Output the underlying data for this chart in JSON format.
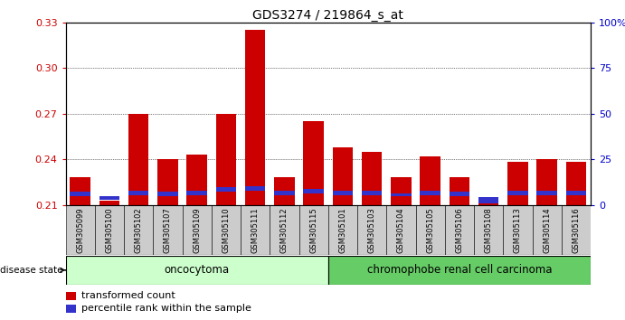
{
  "title": "GDS3274 / 219864_s_at",
  "samples": [
    "GSM305099",
    "GSM305100",
    "GSM305102",
    "GSM305107",
    "GSM305109",
    "GSM305110",
    "GSM305111",
    "GSM305112",
    "GSM305115",
    "GSM305101",
    "GSM305103",
    "GSM305104",
    "GSM305105",
    "GSM305106",
    "GSM305108",
    "GSM305113",
    "GSM305114",
    "GSM305116"
  ],
  "red_values": [
    0.228,
    0.213,
    0.27,
    0.24,
    0.243,
    0.27,
    0.325,
    0.228,
    0.265,
    0.248,
    0.245,
    0.228,
    0.242,
    0.228,
    0.213,
    0.238,
    0.24,
    0.238
  ],
  "blue_values": [
    0.003,
    0.002,
    0.003,
    0.003,
    0.003,
    0.003,
    0.003,
    0.003,
    0.003,
    0.003,
    0.003,
    0.002,
    0.003,
    0.003,
    0.004,
    0.003,
    0.003,
    0.003
  ],
  "blue_bottoms": [
    0.2155,
    0.2135,
    0.2165,
    0.2155,
    0.216,
    0.2185,
    0.219,
    0.216,
    0.2175,
    0.2165,
    0.216,
    0.2155,
    0.216,
    0.2155,
    0.211,
    0.216,
    0.216,
    0.216
  ],
  "ymin": 0.21,
  "ymax": 0.33,
  "yticks": [
    0.21,
    0.24,
    0.27,
    0.3,
    0.33
  ],
  "ytick_labels": [
    "0.21",
    "0.24",
    "0.27",
    "0.30",
    "0.33"
  ],
  "right_yticks": [
    0,
    25,
    50,
    75,
    100
  ],
  "right_ytick_labels": [
    "0",
    "25",
    "50",
    "75",
    "100%"
  ],
  "group1_label": "oncocytoma",
  "group2_label": "chromophobe renal cell carcinoma",
  "group1_count": 9,
  "group2_count": 9,
  "disease_state_label": "disease state",
  "legend_red_label": "transformed count",
  "legend_blue_label": "percentile rank within the sample",
  "bar_width": 0.7,
  "red_color": "#cc0000",
  "blue_color": "#3333cc",
  "group1_color": "#ccffcc",
  "group2_color": "#66cc66",
  "tick_color_left": "#cc0000",
  "tick_color_right": "#0000cc",
  "xticklabel_bg": "#cccccc",
  "title_fontsize": 10
}
